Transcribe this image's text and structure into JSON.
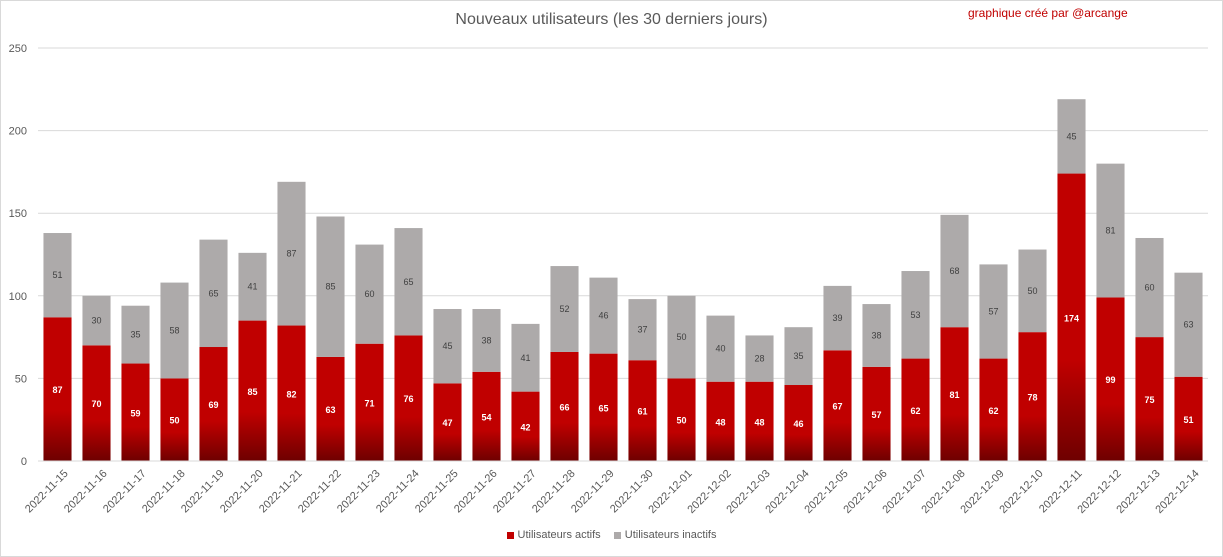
{
  "credit": "graphique créé par @arcange",
  "colors": {
    "active": "#c00000",
    "active_dark": "#6e0000",
    "inactive": "#adaaaa",
    "grid": "#d9d9d9",
    "axis_text": "#595959"
  },
  "chart_data": {
    "type": "bar",
    "stacked": true,
    "title": "Nouveaux utilisateurs (les 30 derniers jours)",
    "xlabel": "",
    "ylabel": "",
    "ylim": [
      0,
      250
    ],
    "yticks": [
      0,
      50,
      100,
      150,
      200,
      250
    ],
    "grid": true,
    "legend_position": "bottom",
    "categories": [
      "2022-11-15",
      "2022-11-16",
      "2022-11-17",
      "2022-11-18",
      "2022-11-19",
      "2022-11-20",
      "2022-11-21",
      "2022-11-22",
      "2022-11-23",
      "2022-11-24",
      "2022-11-25",
      "2022-11-26",
      "2022-11-27",
      "2022-11-28",
      "2022-11-29",
      "2022-11-30",
      "2022-12-01",
      "2022-12-02",
      "2022-12-03",
      "2022-12-04",
      "2022-12-05",
      "2022-12-06",
      "2022-12-07",
      "2022-12-08",
      "2022-12-09",
      "2022-12-10",
      "2022-12-11",
      "2022-12-12",
      "2022-12-13",
      "2022-12-14"
    ],
    "series": [
      {
        "name": "Utilisateurs actifs",
        "values": [
          87,
          70,
          59,
          50,
          69,
          85,
          82,
          63,
          71,
          76,
          47,
          54,
          42,
          66,
          65,
          61,
          50,
          48,
          48,
          46,
          67,
          57,
          62,
          81,
          62,
          78,
          174,
          99,
          75,
          51
        ]
      },
      {
        "name": "Utilisateurs inactifs",
        "values": [
          51,
          30,
          35,
          58,
          65,
          41,
          87,
          85,
          60,
          65,
          45,
          38,
          41,
          52,
          46,
          37,
          50,
          40,
          28,
          35,
          39,
          38,
          53,
          68,
          57,
          50,
          45,
          81,
          60,
          63
        ]
      }
    ]
  }
}
